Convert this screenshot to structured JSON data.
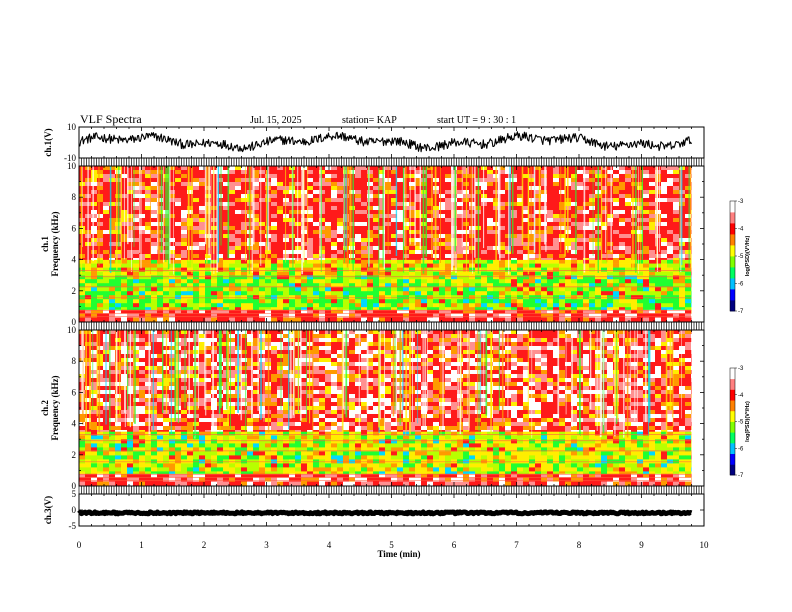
{
  "header": {
    "title": "VLF Spectra",
    "date": "Jul. 15, 2025",
    "station": "station= KAP",
    "start": "start UT =  9 : 30 : 1"
  },
  "chart_data": [
    {
      "type": "line",
      "id": "ch1_waveform",
      "ylabel": "ch.1(V)",
      "ylim": [
        -10,
        10
      ],
      "ytick_labels": [
        "10",
        "-10"
      ],
      "xlim": [
        0,
        10
      ],
      "data_extent_min": [
        0,
        9.8
      ],
      "approx_range": [
        -5,
        8
      ],
      "color": "#000000"
    },
    {
      "type": "heatmap",
      "id": "ch1_spectrogram",
      "ylabel": "ch.1\nFrequency (kHz)",
      "ylim": [
        0,
        10
      ],
      "ytick_labels": [
        "0",
        "2",
        "4",
        "6",
        "8",
        "10"
      ],
      "xlim": [
        0,
        10
      ],
      "data_extent_min": [
        0,
        9.8
      ],
      "colorbar": {
        "label": "log(PSD)(V²/Hz)",
        "range": [
          -7,
          -3
        ],
        "tick_labels": [
          "-3",
          "-4",
          "-5",
          "-6",
          "-7"
        ],
        "colors": [
          "#000080",
          "#0000ff",
          "#00c0ff",
          "#00ff60",
          "#80ff00",
          "#ffff00",
          "#ff8000",
          "#ff0000",
          "#ff8080",
          "#ffffff"
        ]
      },
      "bands_kHz": [
        {
          "from": 0,
          "to": 0.8,
          "level": "red-striped"
        },
        {
          "from": 0.8,
          "to": 3.0,
          "level": "green"
        },
        {
          "from": 3.0,
          "to": 4.0,
          "level": "yellow-green"
        },
        {
          "from": 4.0,
          "to": 10,
          "level": "red"
        }
      ]
    },
    {
      "type": "heatmap",
      "id": "ch2_spectrogram",
      "ylabel": "ch.2\nFrequency (kHz)",
      "ylim": [
        0,
        10
      ],
      "ytick_labels": [
        "0",
        "2",
        "4",
        "6",
        "8",
        "10"
      ],
      "xlim": [
        0,
        10
      ],
      "data_extent_min": [
        0,
        9.8
      ],
      "colorbar": {
        "label": "log(PSD)(V²/Hz)",
        "range": [
          -7,
          -3
        ],
        "tick_labels": [
          "-3",
          "-4",
          "-5",
          "-6",
          "-7"
        ],
        "colors": [
          "#000080",
          "#0000ff",
          "#00c0ff",
          "#00ff60",
          "#80ff00",
          "#ffff00",
          "#ff8000",
          "#ff0000",
          "#ff8080",
          "#ffffff"
        ]
      },
      "bands_kHz": [
        {
          "from": 0,
          "to": 0.8,
          "level": "red-striped"
        },
        {
          "from": 0.8,
          "to": 3.5,
          "level": "green-yellow"
        },
        {
          "from": 3.5,
          "to": 10,
          "level": "red-white"
        }
      ]
    },
    {
      "type": "line",
      "id": "ch3_waveform",
      "ylabel": "ch.3(V)",
      "ylim": [
        -5,
        5
      ],
      "ytick_labels": [
        "5",
        "0",
        "-5"
      ],
      "xlim": [
        0,
        10
      ],
      "data_extent_min": [
        0,
        9.8
      ],
      "approx_range": [
        -1.2,
        -0.6
      ],
      "color": "#000000"
    }
  ],
  "xaxis": {
    "label": "Time (min)",
    "tick_labels": [
      "0",
      "1",
      "2",
      "3",
      "4",
      "5",
      "6",
      "7",
      "8",
      "9",
      "10"
    ]
  }
}
